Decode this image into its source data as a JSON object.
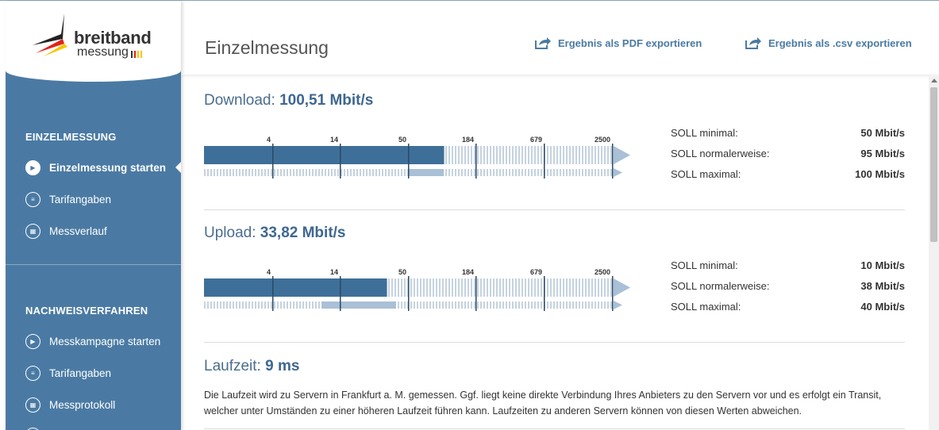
{
  "logo": {
    "line1": "breitband",
    "line2": "messung"
  },
  "header": {
    "title": "Einzelmessung",
    "export_pdf": "Ergebnis als PDF exportieren",
    "export_csv": "Ergebnis als .csv exportieren"
  },
  "sidebar": {
    "section1": "EINZELMESSUNG",
    "items1": [
      {
        "label": "Einzelmessung starten",
        "icon": "play-icon",
        "active": true
      },
      {
        "label": "Tarifangaben",
        "icon": "user-card-icon"
      },
      {
        "label": "Messverlauf",
        "icon": "calendar-icon"
      }
    ],
    "section2": "NACHWEISVERFAHREN",
    "items2": [
      {
        "label": "Messkampagne starten",
        "icon": "play-icon"
      },
      {
        "label": "Tarifangaben",
        "icon": "user-card-icon"
      },
      {
        "label": "Messprotokoll",
        "icon": "calendar-icon"
      }
    ]
  },
  "scale_ticks": [
    "4",
    "14",
    "50",
    "184",
    "679",
    "2500"
  ],
  "download": {
    "label": "Download:",
    "value": "100,51 Mbit/s",
    "measured": 100.51,
    "soll": [
      {
        "label": "SOLL minimal:",
        "value": "50 Mbit/s"
      },
      {
        "label": "SOLL normalerweise:",
        "value": "95 Mbit/s"
      },
      {
        "label": "SOLL maximal:",
        "value": "100 Mbit/s"
      }
    ],
    "range": [
      50,
      100
    ]
  },
  "upload": {
    "label": "Upload:",
    "value": "33,82 Mbit/s",
    "measured": 33.82,
    "soll": [
      {
        "label": "SOLL minimal:",
        "value": "10 Mbit/s"
      },
      {
        "label": "SOLL normalerweise:",
        "value": "38 Mbit/s"
      },
      {
        "label": "SOLL maximal:",
        "value": "40 Mbit/s"
      }
    ],
    "range": [
      10,
      40
    ]
  },
  "latency": {
    "label": "Laufzeit:",
    "value": "9 ms",
    "description": "Die Laufzeit wird zu Servern in Frankfurt a. M. gemessen. Ggf. liegt keine direkte Verbindung Ihres Anbieters zu den Servern vor und es erfolgt ein Transit, welcher unter Umständen zu einer höheren Laufzeit führen kann. Laufzeiten zu anderen Servern können von diesen Werten abweichen."
  },
  "colors": {
    "primary": "#4a7aa3",
    "bar_dark": "#3e6f99",
    "bar_light": "#a9c0d6"
  }
}
